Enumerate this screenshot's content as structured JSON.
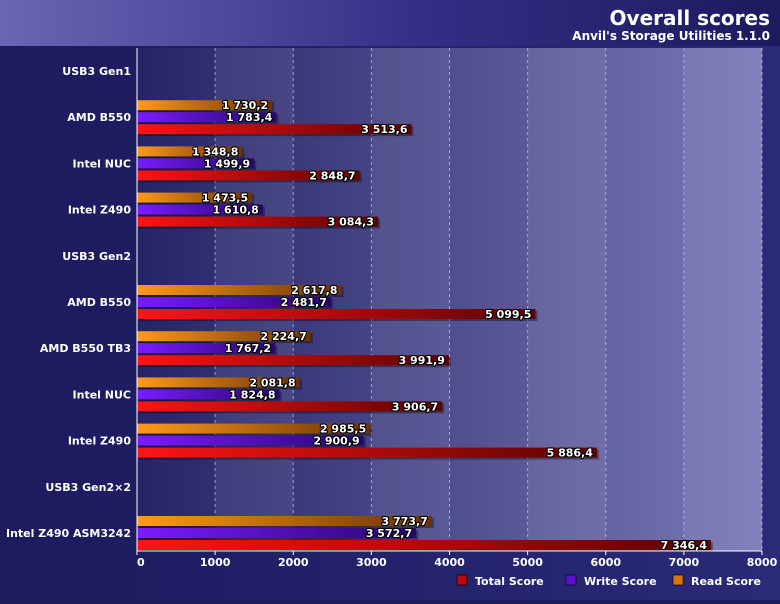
{
  "chart_data": {
    "type": "bar",
    "orientation": "horizontal",
    "title": "Overall scores",
    "subtitle": "Anvil's Storage Utilities 1.1.0",
    "xlim": [
      0,
      8000
    ],
    "xticks": [
      0,
      1000,
      2000,
      3000,
      4000,
      5000,
      6000,
      7000,
      8000
    ],
    "xtick_labels": [
      "0",
      "1000",
      "2000",
      "3000",
      "4000",
      "5000",
      "6000",
      "7000",
      "8000"
    ],
    "grid": true,
    "legend_position": "bottom-right",
    "series": [
      {
        "key": "read",
        "name": "Read Score",
        "color": "#e8820e"
      },
      {
        "key": "write",
        "name": "Write Score",
        "color": "#6a16e0"
      },
      {
        "key": "total",
        "name": "Total Score",
        "color": "#dd0c0c"
      }
    ],
    "legend_order": [
      "total",
      "write",
      "read"
    ],
    "categories": [
      {
        "label": "USB3 Gen1",
        "group": true
      },
      {
        "label": "AMD B550",
        "read": 1730.2,
        "write": 1783.4,
        "total": 3513.6,
        "read_label": "1 730,2",
        "write_label": "1 783,4",
        "total_label": "3 513,6"
      },
      {
        "label": "Intel NUC",
        "read": 1348.8,
        "write": 1499.9,
        "total": 2848.7,
        "read_label": "1 348,8",
        "write_label": "1 499,9",
        "total_label": "2 848,7"
      },
      {
        "label": "Intel Z490",
        "read": 1473.5,
        "write": 1610.8,
        "total": 3084.3,
        "read_label": "1 473,5",
        "write_label": "1 610,8",
        "total_label": "3 084,3"
      },
      {
        "label": "USB3 Gen2",
        "group": true
      },
      {
        "label": "AMD B550",
        "read": 2617.8,
        "write": 2481.7,
        "total": 5099.5,
        "read_label": "2 617,8",
        "write_label": "2 481,7",
        "total_label": "5 099,5"
      },
      {
        "label": "AMD B550 TB3",
        "read": 2224.7,
        "write": 1767.2,
        "total": 3991.9,
        "read_label": "2 224,7",
        "write_label": "1 767,2",
        "total_label": "3 991,9"
      },
      {
        "label": "Intel NUC",
        "read": 2081.8,
        "write": 1824.8,
        "total": 3906.7,
        "read_label": "2 081,8",
        "write_label": "1 824,8",
        "total_label": "3 906,7"
      },
      {
        "label": "Intel Z490",
        "read": 2985.5,
        "write": 2900.9,
        "total": 5886.4,
        "read_label": "2 985,5",
        "write_label": "2 900,9",
        "total_label": "5 886,4"
      },
      {
        "label": "USB3 Gen2×2",
        "group": true
      },
      {
        "label": "Intel Z490 ASM3242",
        "read": 3773.7,
        "write": 3572.7,
        "total": 7346.4,
        "read_label": "3 773,7",
        "write_label": "3 572,7",
        "total_label": "7 346,4"
      }
    ]
  }
}
